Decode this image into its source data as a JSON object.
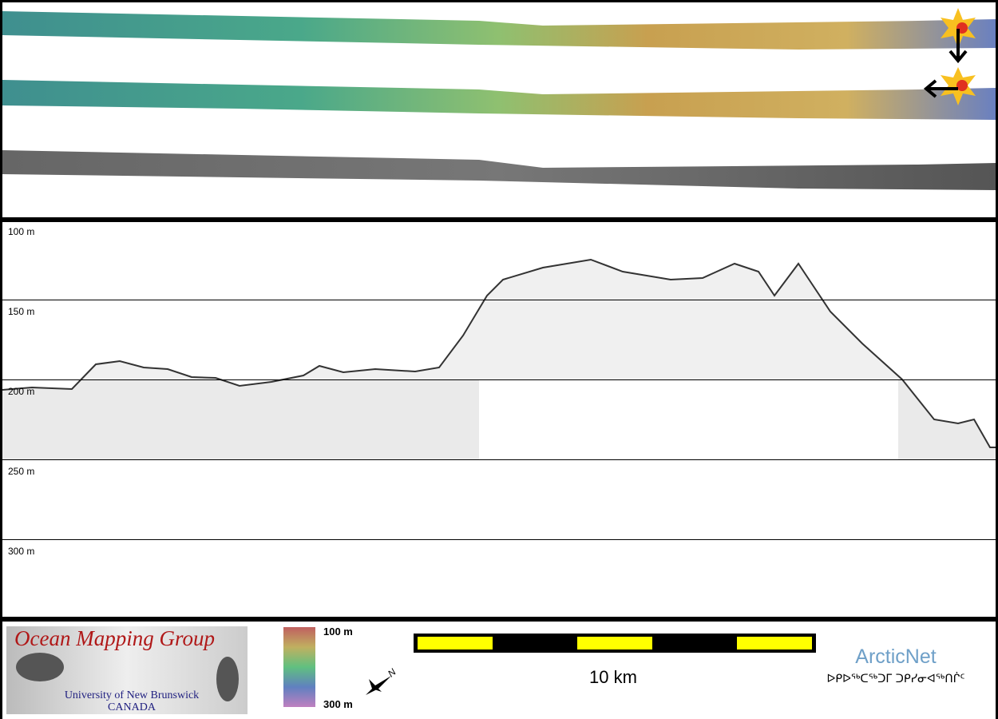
{
  "depth_axis": {
    "labels": [
      "100 m",
      "150 m",
      "200 m",
      "250 m",
      "300 m"
    ]
  },
  "logo": {
    "title": "Ocean Mapping Group",
    "university": "University of New Brunswick",
    "country": "CANADA"
  },
  "colorbar": {
    "top": "100 m",
    "bottom": "300 m"
  },
  "north": "N",
  "scale_bar": {
    "label": "10 km"
  },
  "partner": {
    "name": "ArcticNet",
    "inuktitut": "ᐅᑭᐅᖅᑕᖅᑐᒥ ᑐᑭᓯᓂᐊᖅᑎᒌᑦ"
  }
}
